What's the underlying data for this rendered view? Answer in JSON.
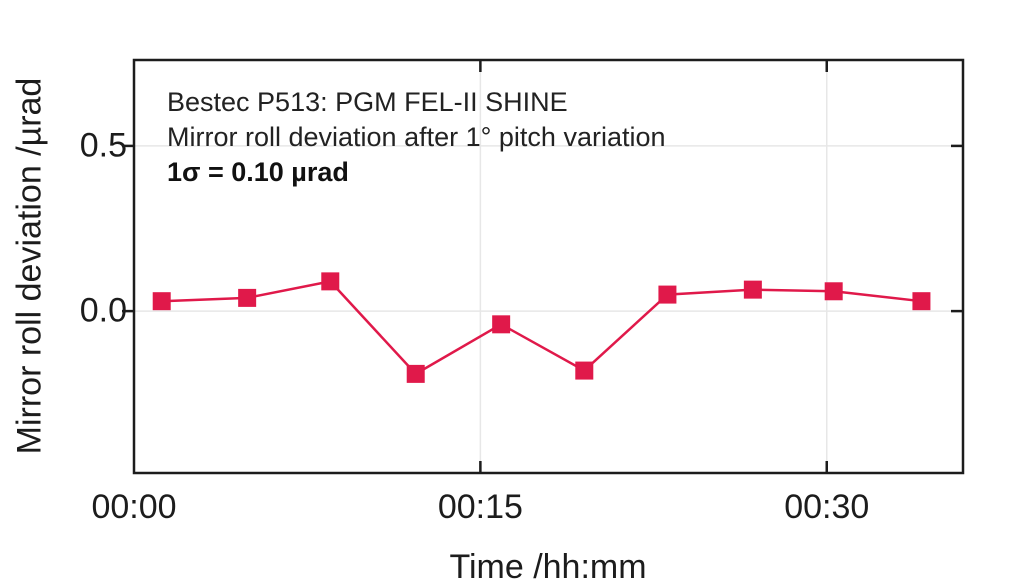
{
  "chart_data": {
    "type": "line",
    "title": "Bestec P513: PGM FEL-II SHINE",
    "subtitle": "Mirror roll deviation after 1° pitch variation",
    "annotation_sigma": "1σ = 0.10 µrad",
    "xlabel": "Time /hh:mm",
    "ylabel": "Mirror roll deviation /µrad",
    "x_unit": "minutes",
    "x": [
      1.2,
      4.9,
      8.5,
      12.2,
      15.9,
      19.5,
      23.1,
      26.8,
      30.3,
      34.1
    ],
    "series": [
      {
        "name": "Mirror roll deviation",
        "values": [
          0.03,
          0.04,
          0.09,
          -0.19,
          -0.04,
          -0.18,
          0.05,
          0.065,
          0.06,
          0.03
        ]
      }
    ],
    "xlim": [
      0,
      35.9
    ],
    "ylim": [
      -0.49,
      0.76
    ],
    "x_ticks": [
      {
        "value": 0,
        "label": "00:00"
      },
      {
        "value": 15,
        "label": "00:15"
      },
      {
        "value": 30,
        "label": "00:30"
      }
    ],
    "y_ticks": [
      {
        "value": 0.5,
        "label": "0.5"
      },
      {
        "value": 0.0,
        "label": "0.0"
      }
    ],
    "grid": true,
    "legend": null,
    "marker": "square",
    "marker_size": 18,
    "line_width": 2.5,
    "colors": {
      "series": "#e0194a",
      "axis": "#1c1c1c",
      "grid": "#e7e7e7",
      "background": "#ffffff"
    }
  }
}
